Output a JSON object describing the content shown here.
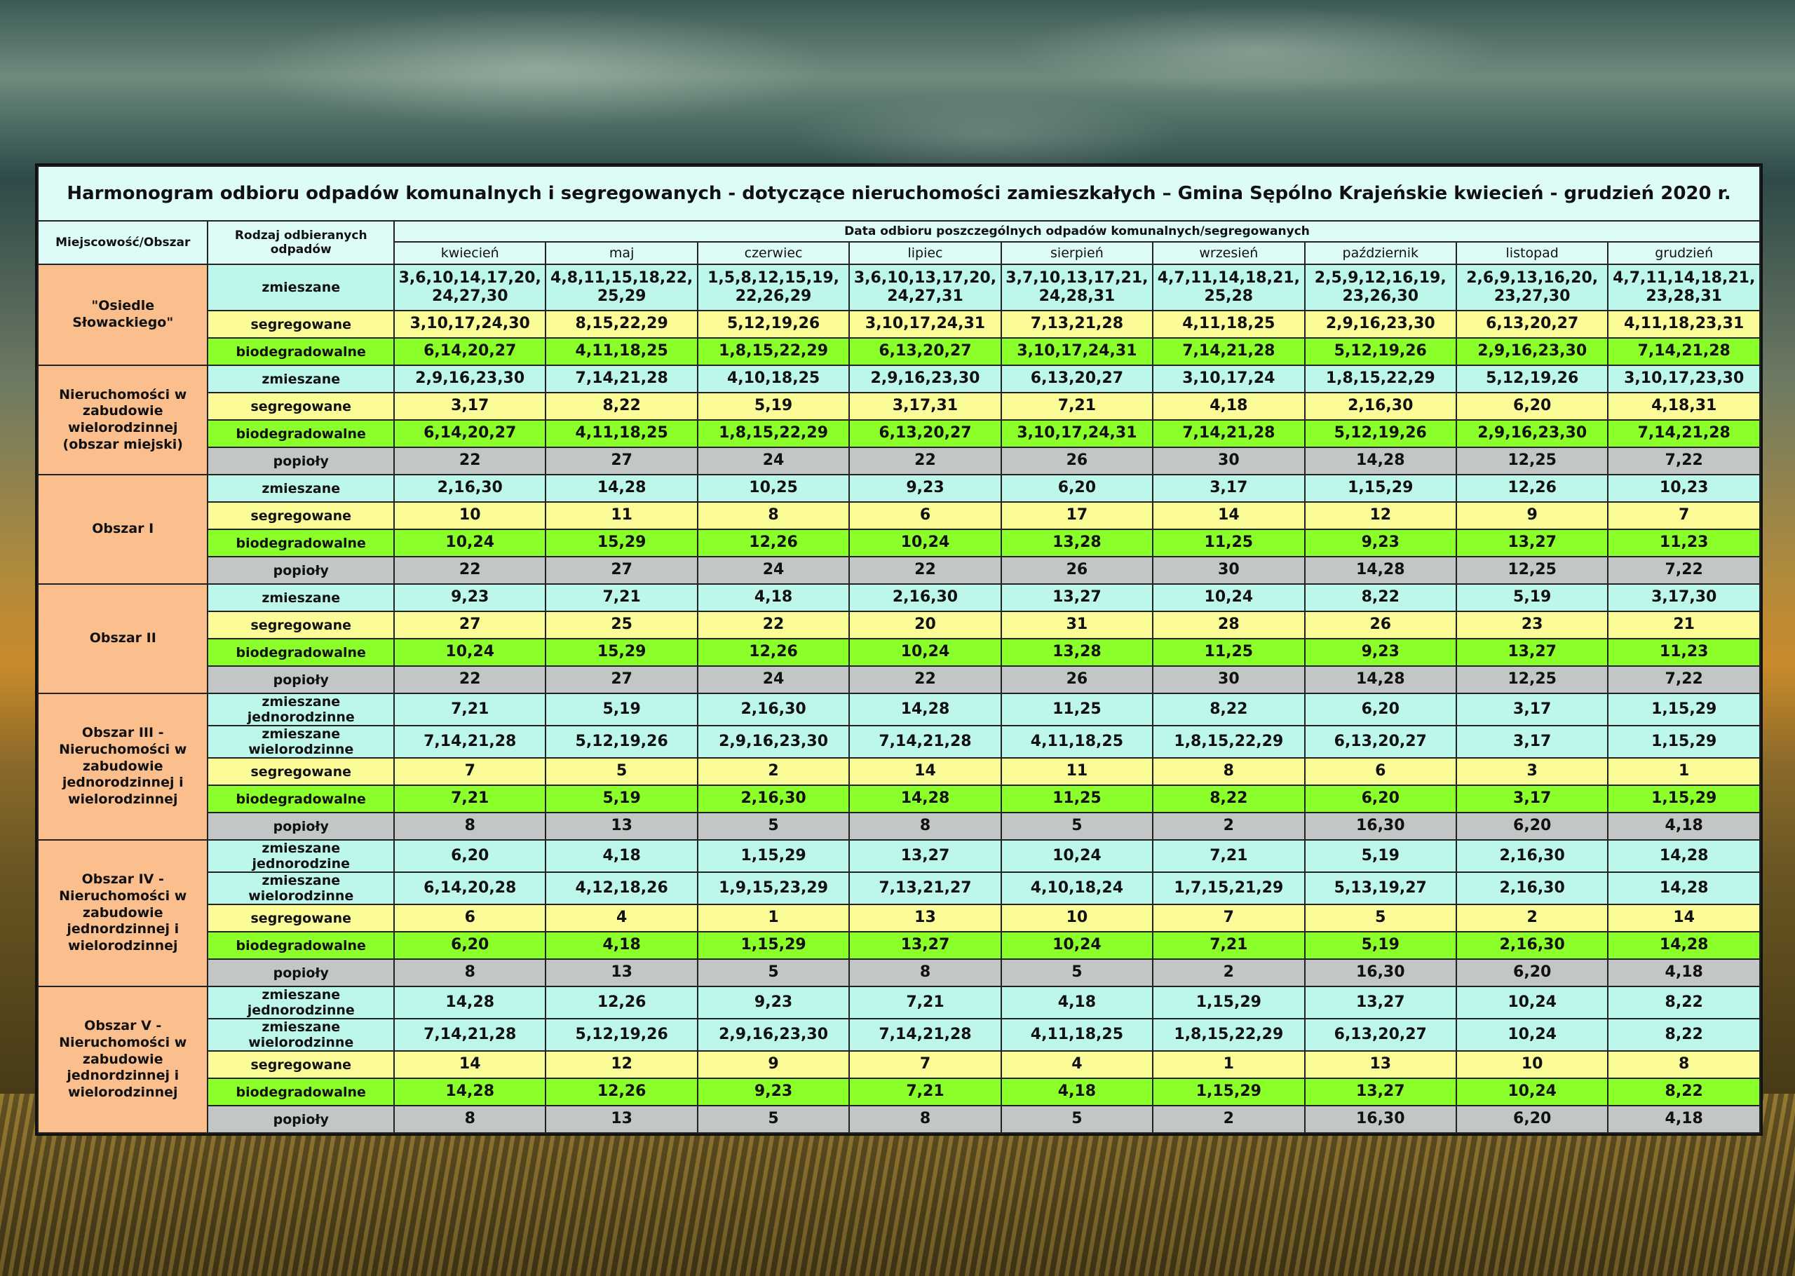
{
  "title": "Harmonogram odbioru odpadów komunalnych i segregowanych - dotyczące nieruchomości zamieszkałych – Gmina Sępólno Krajeńskie kwiecień - grudzień 2020 r.",
  "headers": {
    "area": "Miejscowość/Obszar",
    "type": "Rodzaj odbieranych odpadów",
    "dates": "Data odbioru poszczególnych odpadów komunalnych/segregowanych"
  },
  "months": [
    "kwiecień",
    "maj",
    "czerwiec",
    "lipiec",
    "sierpień",
    "wrzesień",
    "październik",
    "listopad",
    "grudzień"
  ],
  "colors": {
    "zmieszane": "#bdf7ec",
    "segregowane": "#fbfb98",
    "biodegradowalne": "#8aff2a",
    "popioly": "#c3c6c6",
    "area": "#fbbf8e",
    "header": "#ddfcf7"
  },
  "groups": [
    {
      "area": "\"Osiedle Słowackiego\"",
      "rows": [
        {
          "type": "zmieszane",
          "kind": "z",
          "tall": true,
          "values": [
            "3,6,10,14,17,20, 24,27,30",
            "4,8,11,15,18,22, 25,29",
            "1,5,8,12,15,19, 22,26,29",
            "3,6,10,13,17,20, 24,27,31",
            "3,7,10,13,17,21, 24,28,31",
            "4,7,11,14,18,21, 25,28",
            "2,5,9,12,16,19, 23,26,30",
            "2,6,9,13,16,20, 23,27,30",
            "4,7,11,14,18,21, 23,28,31"
          ]
        },
        {
          "type": "segregowane",
          "kind": "s",
          "values": [
            "3,10,17,24,30",
            "8,15,22,29",
            "5,12,19,26",
            "3,10,17,24,31",
            "7,13,21,28",
            "4,11,18,25",
            "2,9,16,23,30",
            "6,13,20,27",
            "4,11,18,23,31"
          ]
        },
        {
          "type": "biodegradowalne",
          "kind": "b",
          "values": [
            "6,14,20,27",
            "4,11,18,25",
            "1,8,15,22,29",
            "6,13,20,27",
            "3,10,17,24,31",
            "7,14,21,28",
            "5,12,19,26",
            "2,9,16,23,30",
            "7,14,21,28"
          ]
        }
      ]
    },
    {
      "area": "Nieruchomości w zabudowie wielorodzinnej (obszar miejski)",
      "rows": [
        {
          "type": "zmieszane",
          "kind": "z",
          "values": [
            "2,9,16,23,30",
            "7,14,21,28",
            "4,10,18,25",
            "2,9,16,23,30",
            "6,13,20,27",
            "3,10,17,24",
            "1,8,15,22,29",
            "5,12,19,26",
            "3,10,17,23,30"
          ]
        },
        {
          "type": "segregowane",
          "kind": "s",
          "values": [
            "3,17",
            "8,22",
            "5,19",
            "3,17,31",
            "7,21",
            "4,18",
            "2,16,30",
            "6,20",
            "4,18,31"
          ]
        },
        {
          "type": "biodegradowalne",
          "kind": "b",
          "values": [
            "6,14,20,27",
            "4,11,18,25",
            "1,8,15,22,29",
            "6,13,20,27",
            "3,10,17,24,31",
            "7,14,21,28",
            "5,12,19,26",
            "2,9,16,23,30",
            "7,14,21,28"
          ]
        },
        {
          "type": "popioły",
          "kind": "p",
          "values": [
            "22",
            "27",
            "24",
            "22",
            "26",
            "30",
            "14,28",
            "12,25",
            "7,22"
          ]
        }
      ]
    },
    {
      "area": "Obszar I",
      "rows": [
        {
          "type": "zmieszane",
          "kind": "z",
          "values": [
            "2,16,30",
            "14,28",
            "10,25",
            "9,23",
            "6,20",
            "3,17",
            "1,15,29",
            "12,26",
            "10,23"
          ]
        },
        {
          "type": "segregowane",
          "kind": "s",
          "values": [
            "10",
            "11",
            "8",
            "6",
            "17",
            "14",
            "12",
            "9",
            "7"
          ]
        },
        {
          "type": "biodegradowalne",
          "kind": "b",
          "values": [
            "10,24",
            "15,29",
            "12,26",
            "10,24",
            "13,28",
            "11,25",
            "9,23",
            "13,27",
            "11,23"
          ]
        },
        {
          "type": "popioły",
          "kind": "p",
          "values": [
            "22",
            "27",
            "24",
            "22",
            "26",
            "30",
            "14,28",
            "12,25",
            "7,22"
          ]
        }
      ]
    },
    {
      "area": "Obszar II",
      "rows": [
        {
          "type": "zmieszane",
          "kind": "z",
          "values": [
            "9,23",
            "7,21",
            "4,18",
            "2,16,30",
            "13,27",
            "10,24",
            "8,22",
            "5,19",
            "3,17,30"
          ]
        },
        {
          "type": "segregowane",
          "kind": "s",
          "values": [
            "27",
            "25",
            "22",
            "20",
            "31",
            "28",
            "26",
            "23",
            "21"
          ]
        },
        {
          "type": "biodegradowalne",
          "kind": "b",
          "values": [
            "10,24",
            "15,29",
            "12,26",
            "10,24",
            "13,28",
            "11,25",
            "9,23",
            "13,27",
            "11,23"
          ]
        },
        {
          "type": "popioły",
          "kind": "p",
          "values": [
            "22",
            "27",
            "24",
            "22",
            "26",
            "30",
            "14,28",
            "12,25",
            "7,22"
          ]
        }
      ]
    },
    {
      "area": "Obszar III - Nieruchomości w zabudowie jednorodzinnej i wielorodzinnej",
      "rows": [
        {
          "type": "zmieszane jednorodzinne",
          "kind": "z",
          "values": [
            "7,21",
            "5,19",
            "2,16,30",
            "14,28",
            "11,25",
            "8,22",
            "6,20",
            "3,17",
            "1,15,29"
          ]
        },
        {
          "type": "zmieszane wielorodzinne",
          "kind": "z",
          "values": [
            "7,14,21,28",
            "5,12,19,26",
            "2,9,16,23,30",
            "7,14,21,28",
            "4,11,18,25",
            "1,8,15,22,29",
            "6,13,20,27",
            "3,17",
            "1,15,29"
          ]
        },
        {
          "type": "segregowane",
          "kind": "s",
          "values": [
            "7",
            "5",
            "2",
            "14",
            "11",
            "8",
            "6",
            "3",
            "1"
          ]
        },
        {
          "type": "biodegradowalne",
          "kind": "b",
          "values": [
            "7,21",
            "5,19",
            "2,16,30",
            "14,28",
            "11,25",
            "8,22",
            "6,20",
            "3,17",
            "1,15,29"
          ]
        },
        {
          "type": "popioły",
          "kind": "p",
          "values": [
            "8",
            "13",
            "5",
            "8",
            "5",
            "2",
            "16,30",
            "6,20",
            "4,18"
          ]
        }
      ]
    },
    {
      "area": "Obszar IV - Nieruchomości w zabudowie jednordzinnej i wielorodzinnej",
      "rows": [
        {
          "type": "zmieszane jednorodzine",
          "kind": "z",
          "values": [
            "6,20",
            "4,18",
            "1,15,29",
            "13,27",
            "10,24",
            "7,21",
            "5,19",
            "2,16,30",
            "14,28"
          ]
        },
        {
          "type": "zmieszane wielorodzinne",
          "kind": "z",
          "values": [
            "6,14,20,28",
            "4,12,18,26",
            "1,9,15,23,29",
            "7,13,21,27",
            "4,10,18,24",
            "1,7,15,21,29",
            "5,13,19,27",
            "2,16,30",
            "14,28"
          ]
        },
        {
          "type": "segregowane",
          "kind": "s",
          "values": [
            "6",
            "4",
            "1",
            "13",
            "10",
            "7",
            "5",
            "2",
            "14"
          ]
        },
        {
          "type": "biodegradowalne",
          "kind": "b",
          "values": [
            "6,20",
            "4,18",
            "1,15,29",
            "13,27",
            "10,24",
            "7,21",
            "5,19",
            "2,16,30",
            "14,28"
          ]
        },
        {
          "type": "popioły",
          "kind": "p",
          "values": [
            "8",
            "13",
            "5",
            "8",
            "5",
            "2",
            "16,30",
            "6,20",
            "4,18"
          ]
        }
      ]
    },
    {
      "area": "Obszar V - Nieruchomości w zabudowie jednordzinnej i wielorodzinnej",
      "rows": [
        {
          "type": "zmieszane jednorodzinne",
          "kind": "z",
          "values": [
            "14,28",
            "12,26",
            "9,23",
            "7,21",
            "4,18",
            "1,15,29",
            "13,27",
            "10,24",
            "8,22"
          ]
        },
        {
          "type": "zmieszane wielorodzinne",
          "kind": "z",
          "values": [
            "7,14,21,28",
            "5,12,19,26",
            "2,9,16,23,30",
            "7,14,21,28",
            "4,11,18,25",
            "1,8,15,22,29",
            "6,13,20,27",
            "10,24",
            "8,22"
          ]
        },
        {
          "type": "segregowane",
          "kind": "s",
          "values": [
            "14",
            "12",
            "9",
            "7",
            "4",
            "1",
            "13",
            "10",
            "8"
          ]
        },
        {
          "type": "biodegradowalne",
          "kind": "b",
          "values": [
            "14,28",
            "12,26",
            "9,23",
            "7,21",
            "4,18",
            "1,15,29",
            "13,27",
            "10,24",
            "8,22"
          ]
        },
        {
          "type": "popioły",
          "kind": "p",
          "values": [
            "8",
            "13",
            "5",
            "8",
            "5",
            "2",
            "16,30",
            "6,20",
            "4,18"
          ]
        }
      ]
    }
  ]
}
